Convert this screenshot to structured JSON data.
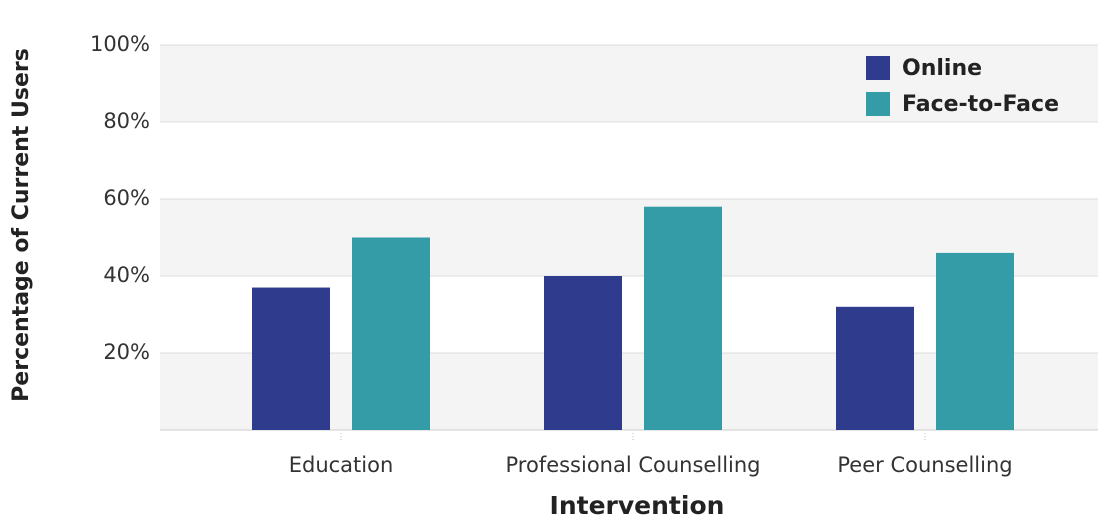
{
  "chart_data": {
    "type": "bar",
    "x_label": "Intervention",
    "y_label": "Percentage of Current Users",
    "categories": [
      "Education",
      "Professional Counselling",
      "Peer Counselling"
    ],
    "series": [
      {
        "name": "Online",
        "color": "#2f3b8c",
        "values": [
          37,
          40,
          32
        ]
      },
      {
        "name": "Face-to-Face",
        "color": "#339ca6",
        "values": [
          50,
          58,
          46
        ]
      }
    ],
    "ylim": [
      0,
      100
    ],
    "yticks": [
      {
        "value": 20,
        "label": "20%"
      },
      {
        "value": 40,
        "label": "40%"
      },
      {
        "value": 60,
        "label": "60%"
      },
      {
        "value": 80,
        "label": "80%"
      },
      {
        "value": 100,
        "label": "100%"
      }
    ],
    "grid": true,
    "legend": "top-right"
  }
}
